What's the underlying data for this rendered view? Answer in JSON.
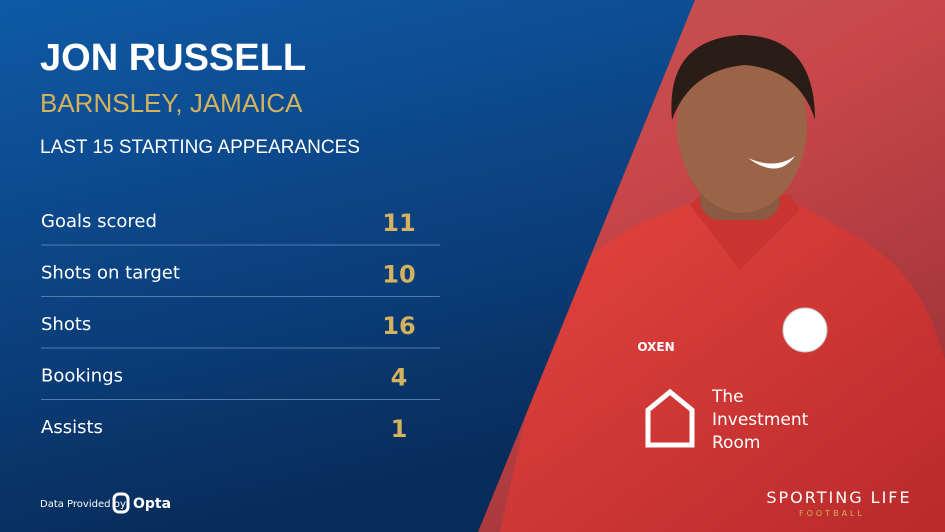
{
  "header": {
    "name": "JON RUSSELL",
    "club": "BARNSLEY, JAMAICA",
    "subtitle": "LAST 15 STARTING APPEARANCES"
  },
  "stats": {
    "rows": [
      {
        "label": "Goals scored",
        "value": 11
      },
      {
        "label": "Shots on target",
        "value": 10
      },
      {
        "label": "Shots",
        "value": 16
      },
      {
        "label": "Bookings",
        "value": 4
      },
      {
        "label": "Assists",
        "value": 1
      }
    ]
  },
  "footer": {
    "data_provider": "Data Provided by",
    "provider": "Opta",
    "brand": "SPORTING LIFE",
    "brand_sub": "FOOTBALL"
  },
  "photo": {
    "shirt_sponsor": "OXEN",
    "sponsor_line1": "The",
    "sponsor_line2": "Investment",
    "sponsor_line3": "Room"
  }
}
